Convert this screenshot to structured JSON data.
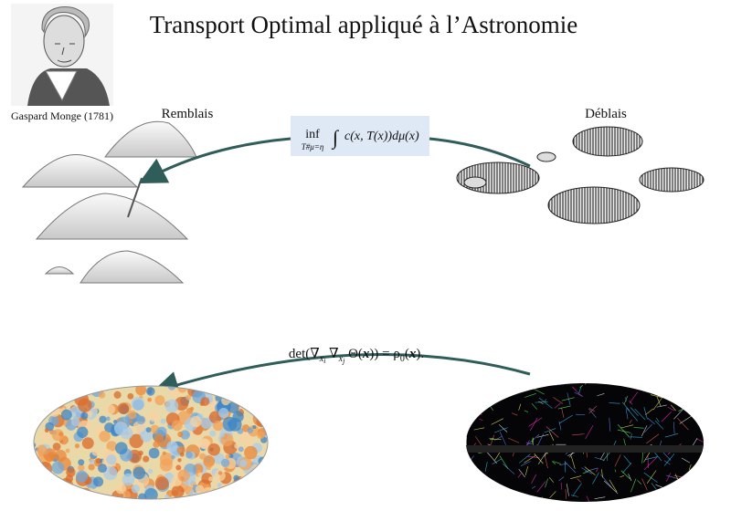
{
  "header": {
    "title": "Transport Optimal appliqué à l’Astronomie"
  },
  "portrait": {
    "caption": "Gaspard Monge (1781)"
  },
  "labels": {
    "remblais": "Remblais",
    "deblais": "Déblais"
  },
  "formula_1": {
    "operator": "inf",
    "subscript": "T#μ=η",
    "integral": "∫",
    "integrand": "c(x, T(x))dμ(x)"
  },
  "formula_2": {
    "parts": [
      "det(∇",
      "x",
      "i",
      " ∇",
      "x",
      "j",
      " Θ(",
      "x",
      ")) = ρ",
      "0",
      "(",
      "x",
      ")."
    ]
  }
}
